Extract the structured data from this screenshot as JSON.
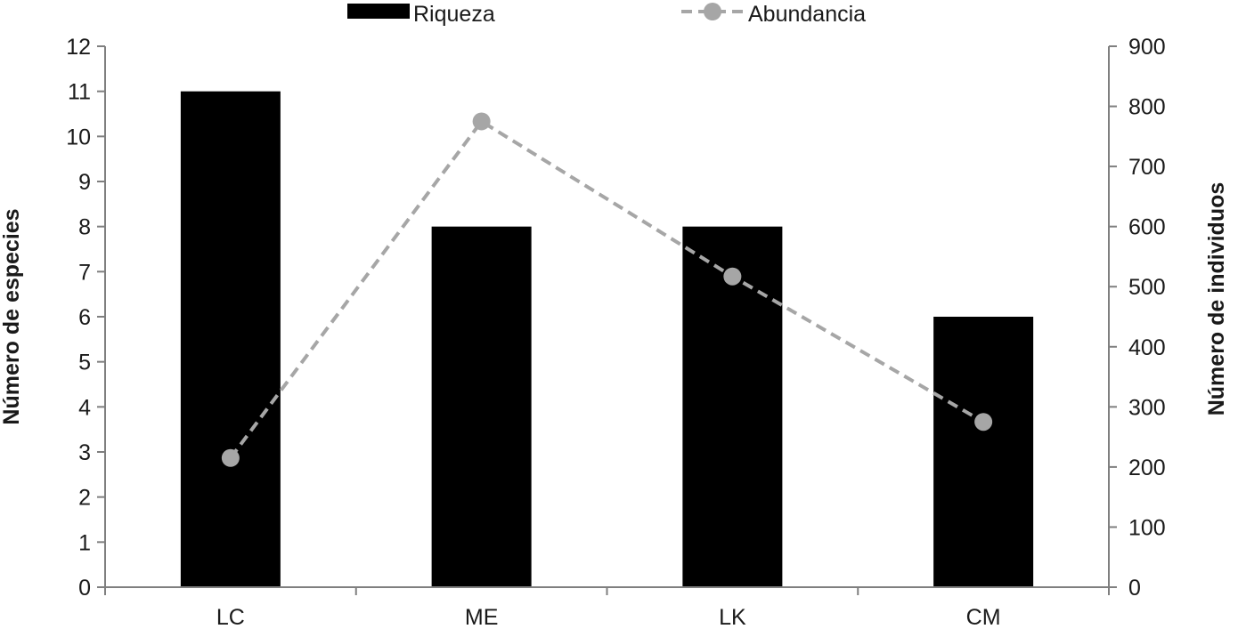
{
  "chart_data": {
    "type": "bar+line",
    "categories": [
      "LC",
      "ME",
      "LK",
      "CM"
    ],
    "series": [
      {
        "name": "Riqueza",
        "type": "bar",
        "axis": "left",
        "values": [
          11,
          8,
          8,
          6
        ],
        "color": "#000000"
      },
      {
        "name": "Abundancia",
        "type": "line",
        "axis": "right",
        "line_style": "dashed",
        "marker": "circle",
        "values": [
          215,
          775,
          517,
          275
        ],
        "color": "#a6a6a6"
      }
    ],
    "ylabel": "Número de especies",
    "y2label": "Número de individuos",
    "ylim": [
      0,
      12
    ],
    "y2lim": [
      0,
      900
    ],
    "yticks": [
      "0",
      "1",
      "2",
      "3",
      "4",
      "5",
      "6",
      "7",
      "8",
      "9",
      "10",
      "11",
      "12"
    ],
    "y2ticks": [
      "0",
      "100",
      "200",
      "300",
      "400",
      "500",
      "600",
      "700",
      "800",
      "900"
    ],
    "grid": false,
    "legend_position": "top-center"
  }
}
